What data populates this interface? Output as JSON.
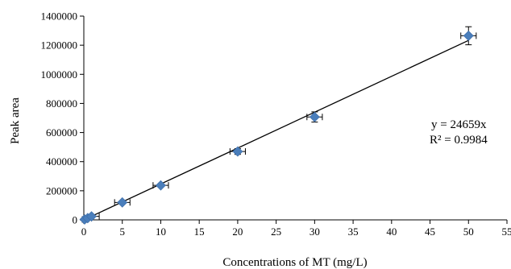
{
  "chart_data": {
    "type": "scatter",
    "xlabel": "Concentrations of MT (mg/L)",
    "ylabel": "Peak area",
    "xlim": [
      0,
      55
    ],
    "ylim": [
      0,
      1400000
    ],
    "x_ticks": [
      0,
      5,
      10,
      15,
      20,
      25,
      30,
      35,
      40,
      45,
      50,
      55
    ],
    "y_ticks": [
      0,
      200000,
      400000,
      600000,
      800000,
      1000000,
      1200000,
      1400000
    ],
    "x_tick_labels": [
      "0",
      "5",
      "10",
      "15",
      "20",
      "25",
      "30",
      "35",
      "40",
      "45",
      "50",
      "55"
    ],
    "y_tick_labels": [
      "0",
      "200000",
      "400000",
      "600000",
      "800000",
      "1000000",
      "1200000",
      "1400000"
    ],
    "grid": false,
    "marker_color": "#4a7ebb",
    "points": [
      {
        "x": 0.1,
        "y": 3000,
        "x_err": 0.3,
        "y_err": 0
      },
      {
        "x": 0.5,
        "y": 12000,
        "x_err": 0.5,
        "y_err": 0
      },
      {
        "x": 1,
        "y": 24000,
        "x_err": 1,
        "y_err": 0
      },
      {
        "x": 5,
        "y": 120000,
        "x_err": 1,
        "y_err": 6000
      },
      {
        "x": 10,
        "y": 237000,
        "x_err": 1,
        "y_err": 10000
      },
      {
        "x": 20,
        "y": 470000,
        "x_err": 1,
        "y_err": 20000
      },
      {
        "x": 30,
        "y": 707000,
        "x_err": 1,
        "y_err": 35000
      },
      {
        "x": 50,
        "y": 1265000,
        "x_err": 1,
        "y_err": 62000
      }
    ],
    "trendline": {
      "slope": 24659,
      "intercept": 0,
      "x_range": [
        0,
        50
      ]
    },
    "annotation": {
      "equation": "y = 24659x",
      "r_squared": "R² = 0.9984"
    }
  }
}
